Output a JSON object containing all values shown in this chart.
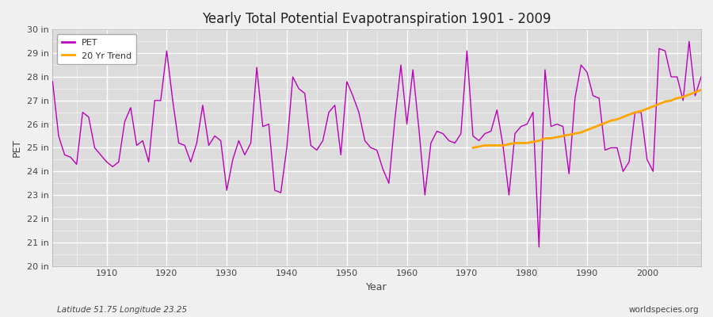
{
  "title": "Yearly Total Potential Evapotranspiration 1901 - 2009",
  "xlabel": "Year",
  "ylabel": "PET",
  "subtitle_left": "Latitude 51.75 Longitude 23.25",
  "subtitle_right": "worldspecies.org",
  "fig_bg_color": "#f0f0f0",
  "plot_bg_color": "#dcdcdc",
  "pet_color": "#bb00bb",
  "trend_color": "#ffa500",
  "ylim": [
    20,
    30
  ],
  "xlim": [
    1901,
    2009
  ],
  "ytick_labels": [
    "20 in",
    "21 in",
    "22 in",
    "23 in",
    "24 in",
    "25 in",
    "26 in",
    "27 in",
    "28 in",
    "29 in",
    "30 in"
  ],
  "ytick_values": [
    20,
    21,
    22,
    23,
    24,
    25,
    26,
    27,
    28,
    29,
    30
  ],
  "years": [
    1901,
    1902,
    1903,
    1904,
    1905,
    1906,
    1907,
    1908,
    1909,
    1910,
    1911,
    1912,
    1913,
    1914,
    1915,
    1916,
    1917,
    1918,
    1919,
    1920,
    1921,
    1922,
    1923,
    1924,
    1925,
    1926,
    1927,
    1928,
    1929,
    1930,
    1931,
    1932,
    1933,
    1934,
    1935,
    1936,
    1937,
    1938,
    1939,
    1940,
    1941,
    1942,
    1943,
    1944,
    1945,
    1946,
    1947,
    1948,
    1949,
    1950,
    1951,
    1952,
    1953,
    1954,
    1955,
    1956,
    1957,
    1958,
    1959,
    1960,
    1961,
    1962,
    1963,
    1964,
    1965,
    1966,
    1967,
    1968,
    1969,
    1970,
    1971,
    1972,
    1973,
    1974,
    1975,
    1976,
    1977,
    1978,
    1979,
    1980,
    1981,
    1982,
    1983,
    1984,
    1985,
    1986,
    1987,
    1988,
    1989,
    1990,
    1991,
    1992,
    1993,
    1994,
    1995,
    1996,
    1997,
    1998,
    1999,
    2000,
    2001,
    2002,
    2003,
    2004,
    2005,
    2006,
    2007,
    2008,
    2009
  ],
  "pet_values": [
    27.8,
    25.5,
    24.7,
    24.6,
    24.3,
    26.5,
    26.3,
    25.0,
    24.7,
    24.4,
    24.2,
    24.4,
    26.1,
    26.7,
    25.1,
    25.3,
    24.4,
    27.0,
    27.0,
    29.1,
    27.0,
    25.2,
    25.1,
    24.4,
    25.2,
    26.8,
    25.1,
    25.5,
    25.3,
    23.2,
    24.5,
    25.3,
    24.7,
    25.2,
    28.4,
    25.9,
    26.0,
    23.2,
    23.1,
    25.0,
    28.0,
    27.5,
    27.3,
    25.1,
    24.9,
    25.3,
    26.5,
    26.8,
    24.7,
    27.8,
    27.2,
    26.5,
    25.3,
    25.0,
    24.9,
    24.1,
    23.5,
    26.2,
    28.5,
    26.0,
    28.3,
    25.8,
    23.0,
    25.2,
    25.7,
    25.6,
    25.3,
    25.2,
    25.6,
    29.1,
    25.5,
    25.3,
    25.6,
    25.7,
    26.6,
    25.1,
    23.0,
    25.6,
    25.9,
    26.0,
    26.5,
    20.8,
    28.3,
    25.9,
    26.0,
    25.9,
    23.9,
    27.1,
    28.5,
    28.2,
    27.2,
    27.1,
    24.9,
    25.0,
    25.0,
    24.0,
    24.4,
    26.5,
    26.5,
    24.5,
    24.0,
    29.2,
    29.1,
    28.0,
    28.0,
    27.0,
    29.5,
    27.2,
    28.0
  ],
  "trend_values_years": [
    1971,
    1972,
    1973,
    1974,
    1975,
    1976,
    1977,
    1978,
    1979,
    1980,
    1981,
    1982,
    1983,
    1984,
    1985,
    1986,
    1987,
    1988,
    1989,
    1990,
    1991,
    1992,
    1993,
    1994,
    1995,
    1996,
    1997,
    1998,
    1999,
    2000,
    2001,
    2002,
    2003,
    2004,
    2005,
    2006,
    2007,
    2008,
    2009
  ],
  "trend_values": [
    25.0,
    25.05,
    25.1,
    25.1,
    25.1,
    25.1,
    25.15,
    25.2,
    25.2,
    25.2,
    25.25,
    25.3,
    25.4,
    25.4,
    25.45,
    25.5,
    25.55,
    25.6,
    25.65,
    25.75,
    25.85,
    25.95,
    26.05,
    26.15,
    26.2,
    26.3,
    26.4,
    26.5,
    26.55,
    26.65,
    26.75,
    26.85,
    26.95,
    27.0,
    27.1,
    27.15,
    27.25,
    27.35,
    27.45
  ]
}
